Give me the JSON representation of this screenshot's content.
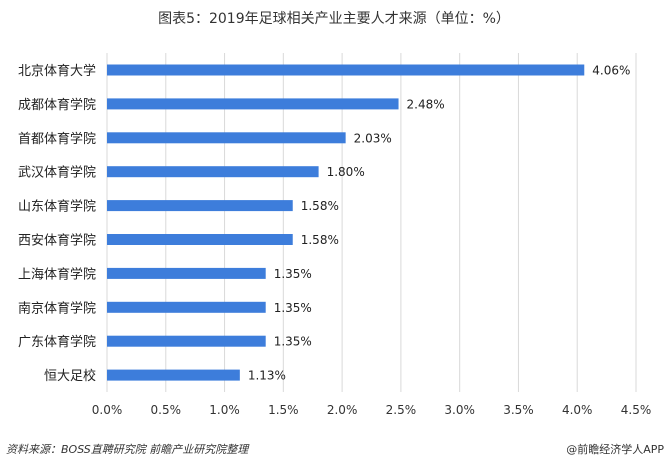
{
  "chart_data": {
    "type": "bar",
    "orientation": "horizontal",
    "title": "图表5：2019年足球相关产业主要人才来源（单位：%）",
    "categories": [
      "北京体育大学",
      "成都体育学院",
      "首都体育学院",
      "武汉体育学院",
      "山东体育学院",
      "西安体育学院",
      "上海体育学院",
      "南京体育学院",
      "广东体育学院",
      "恒大足校"
    ],
    "values": [
      4.06,
      2.48,
      2.03,
      1.8,
      1.58,
      1.58,
      1.35,
      1.35,
      1.35,
      1.13
    ],
    "data_labels": [
      "4.06%",
      "2.48%",
      "2.03%",
      "1.80%",
      "1.58%",
      "1.58%",
      "1.35%",
      "1.35%",
      "1.35%",
      "1.13%"
    ],
    "xlim": [
      0,
      4.5
    ],
    "x_ticks": [
      "0.0%",
      "0.5%",
      "1.0%",
      "1.5%",
      "2.0%",
      "2.5%",
      "3.0%",
      "3.5%",
      "4.0%",
      "4.5%"
    ],
    "grid": "vertical",
    "bar_color": "#3d7ddb"
  },
  "footer": {
    "source": "资料来源：BOSS直聘研究院 前瞻产业研究院整理",
    "credit": "@前瞻经济学人APP"
  }
}
